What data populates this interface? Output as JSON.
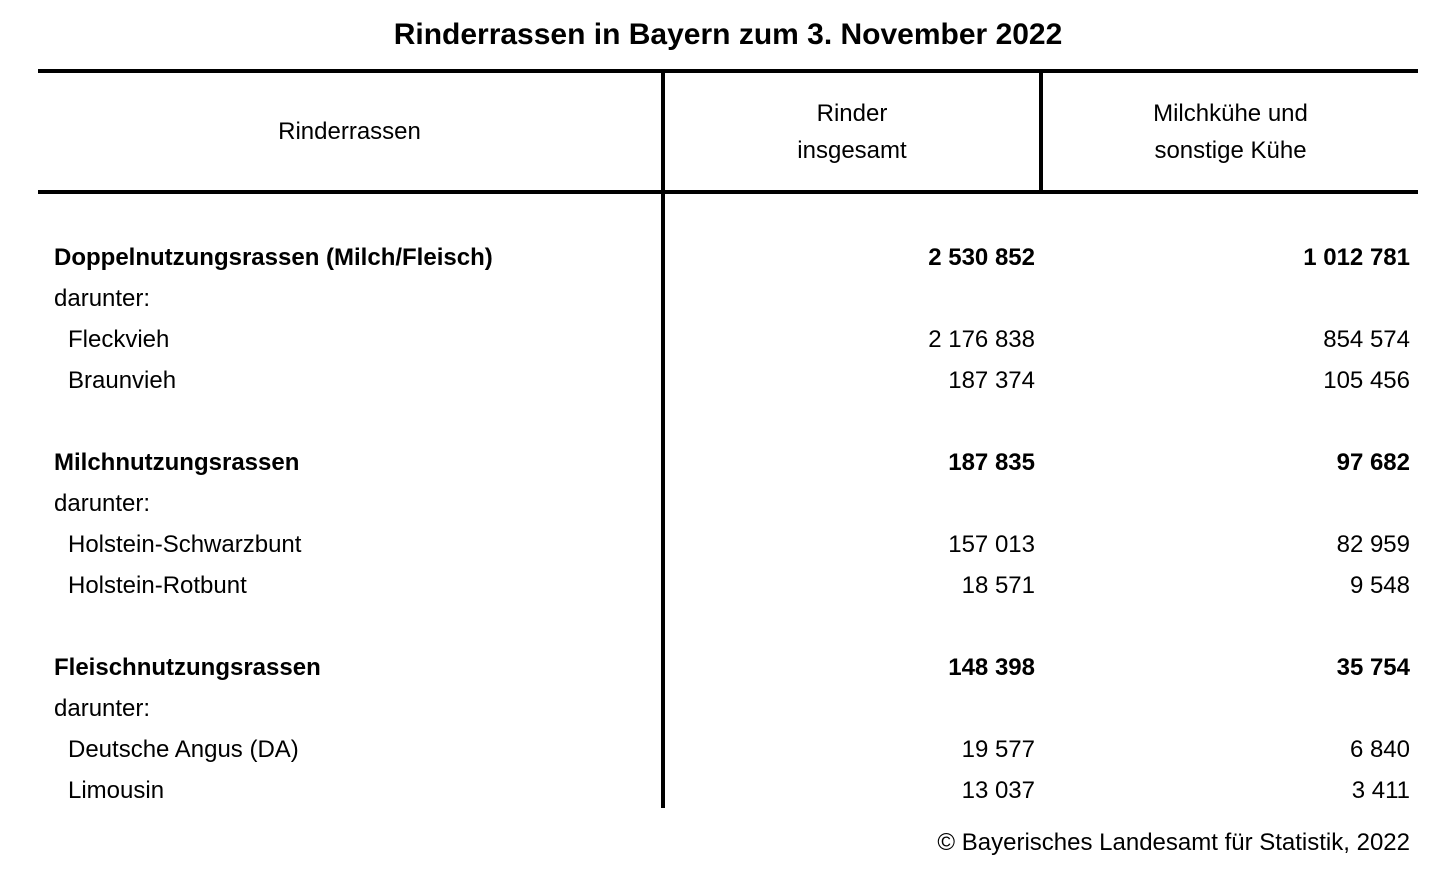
{
  "title": "Rinderrassen in Bayern zum 3. November 2022",
  "table": {
    "columns": {
      "breed": "Rinderrassen",
      "total": "Rinder\ninsgesamt",
      "cows": "Milchkühe und\nsonstige Kühe"
    },
    "rows": [
      {
        "type": "group",
        "label": "Doppelnutzungsrassen (Milch/Fleisch)",
        "total": "2 530 852",
        "cows": "1 012 781"
      },
      {
        "type": "sublabel",
        "label": "darunter:",
        "total": "",
        "cows": ""
      },
      {
        "type": "item",
        "label": "Fleckvieh",
        "total": "2 176 838",
        "cows": "854 574"
      },
      {
        "type": "item",
        "label": "Braunvieh",
        "total": "187 374",
        "cows": "105 456"
      },
      {
        "type": "spacer",
        "label": "",
        "total": "",
        "cows": ""
      },
      {
        "type": "group",
        "label": "Milchnutzungsrassen",
        "total": "187 835",
        "cows": "97 682"
      },
      {
        "type": "sublabel",
        "label": "darunter:",
        "total": "",
        "cows": ""
      },
      {
        "type": "item",
        "label": "Holstein-Schwarzbunt",
        "total": "157 013",
        "cows": "82 959"
      },
      {
        "type": "item",
        "label": "Holstein-Rotbunt",
        "total": "18 571",
        "cows": "9 548"
      },
      {
        "type": "spacer",
        "label": "",
        "total": "",
        "cows": ""
      },
      {
        "type": "group",
        "label": "Fleischnutzungsrassen",
        "total": "148 398",
        "cows": "35 754"
      },
      {
        "type": "sublabel",
        "label": "darunter:",
        "total": "",
        "cows": ""
      },
      {
        "type": "item",
        "label": "Deutsche Angus (DA)",
        "total": "19 577",
        "cows": "6 840"
      },
      {
        "type": "item",
        "label": "Limousin",
        "total": "13 037",
        "cows": "3 411"
      }
    ]
  },
  "footer": {
    "copyright": "© Bayerisches Landesamt für Statistik, 2022"
  },
  "colors": {
    "background": "#ffffff",
    "text": "#000000",
    "rule": "#000000"
  },
  "chart_data": {
    "type": "table",
    "title": "Rinderrassen in Bayern zum 3. November 2022",
    "columns": [
      "Rinderrassen",
      "Rinder insgesamt",
      "Milchkühe und sonstige Kühe"
    ],
    "rows": [
      {
        "group": "Doppelnutzungsrassen (Milch/Fleisch)",
        "rinder_insgesamt": 2530852,
        "milchkuehe_und_sonstige_kuehe": 1012781,
        "darunter": [
          {
            "name": "Fleckvieh",
            "rinder_insgesamt": 2176838,
            "milchkuehe_und_sonstige_kuehe": 854574
          },
          {
            "name": "Braunvieh",
            "rinder_insgesamt": 187374,
            "milchkuehe_und_sonstige_kuehe": 105456
          }
        ]
      },
      {
        "group": "Milchnutzungsrassen",
        "rinder_insgesamt": 187835,
        "milchkuehe_und_sonstige_kuehe": 97682,
        "darunter": [
          {
            "name": "Holstein-Schwarzbunt",
            "rinder_insgesamt": 157013,
            "milchkuehe_und_sonstige_kuehe": 82959
          },
          {
            "name": "Holstein-Rotbunt",
            "rinder_insgesamt": 18571,
            "milchkuehe_und_sonstige_kuehe": 9548
          }
        ]
      },
      {
        "group": "Fleischnutzungsrassen",
        "rinder_insgesamt": 148398,
        "milchkuehe_und_sonstige_kuehe": 35754,
        "darunter": [
          {
            "name": "Deutsche Angus (DA)",
            "rinder_insgesamt": 19577,
            "milchkuehe_und_sonstige_kuehe": 6840
          },
          {
            "name": "Limousin",
            "rinder_insgesamt": 13037,
            "milchkuehe_und_sonstige_kuehe": 3411
          }
        ]
      }
    ],
    "source": "© Bayerisches Landesamt für Statistik, 2022"
  }
}
